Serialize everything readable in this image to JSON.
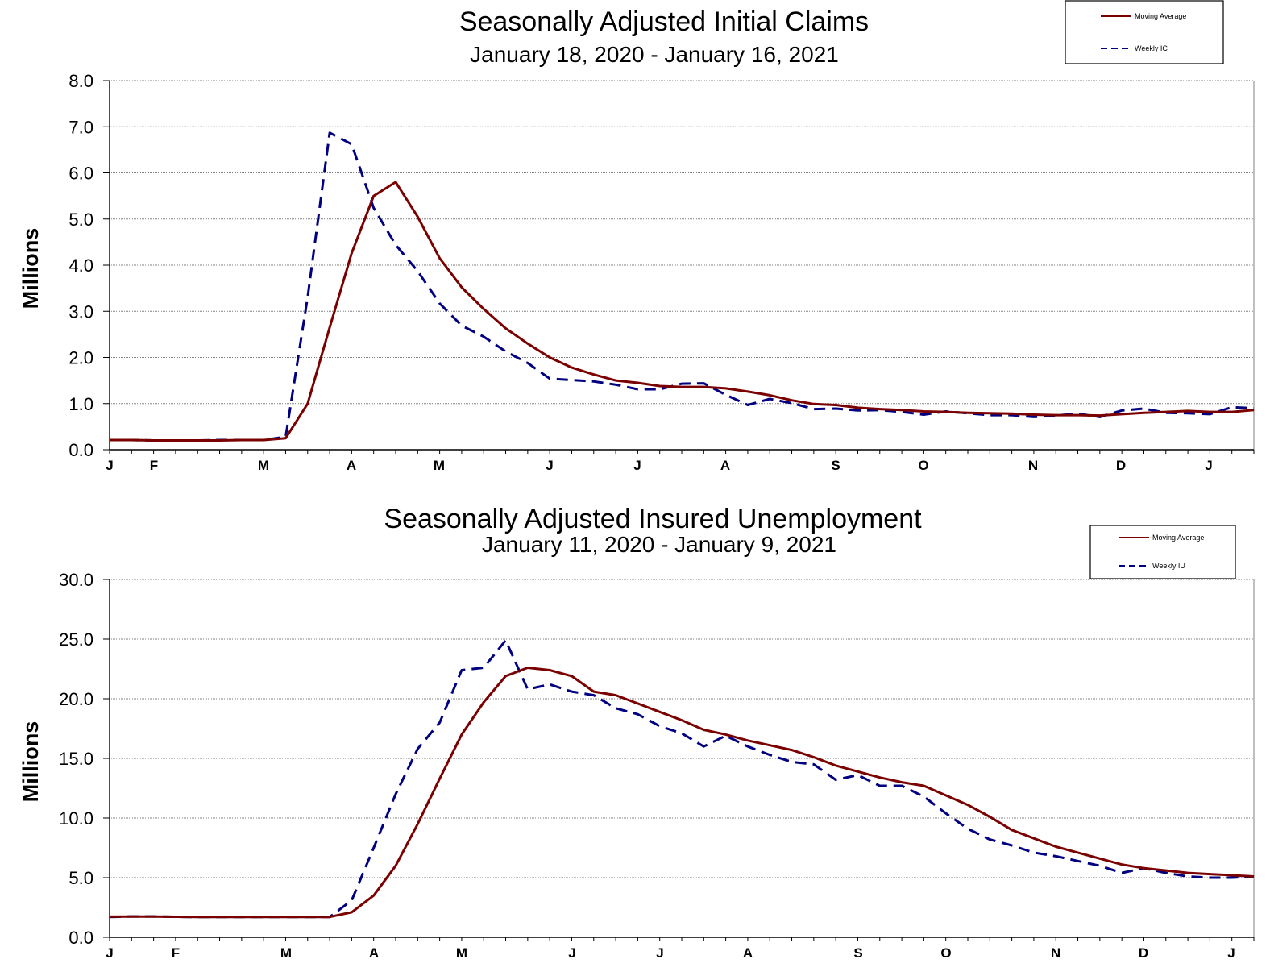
{
  "chart_data": [
    {
      "type": "line",
      "title": "Seasonally Adjusted Initial Claims",
      "subtitle": "January 18, 2020 - January 16, 2021",
      "ylabel": "Millions",
      "xlabel": "",
      "ylim": [
        0,
        8
      ],
      "y_ticks": [
        "0.0",
        "1.0",
        "2.0",
        "3.0",
        "4.0",
        "5.0",
        "6.0",
        "7.0",
        "8.0"
      ],
      "x_ticks": [
        "J",
        "F",
        "M",
        "A",
        "M",
        "J",
        "J",
        "A",
        "S",
        "O",
        "N",
        "D",
        "J"
      ],
      "grid": true,
      "legend": "top-right",
      "series": [
        {
          "name": "Moving Average",
          "color": "#7b0000",
          "style": "solid",
          "values": [
            0.21,
            0.21,
            0.2,
            0.2,
            0.2,
            0.2,
            0.21,
            0.21,
            0.25,
            1.0,
            2.65,
            4.26,
            5.5,
            5.8,
            5.05,
            4.15,
            3.52,
            3.05,
            2.63,
            2.3,
            2.0,
            1.78,
            1.63,
            1.5,
            1.45,
            1.38,
            1.36,
            1.36,
            1.33,
            1.26,
            1.18,
            1.07,
            0.99,
            0.97,
            0.91,
            0.88,
            0.86,
            0.83,
            0.82,
            0.8,
            0.79,
            0.78,
            0.76,
            0.75,
            0.75,
            0.74,
            0.77,
            0.8,
            0.82,
            0.84,
            0.82,
            0.82,
            0.86
          ]
        },
        {
          "name": "Weekly IC",
          "color": "#000080",
          "style": "dashed",
          "values": [
            0.21,
            0.21,
            0.2,
            0.2,
            0.2,
            0.21,
            0.21,
            0.21,
            0.28,
            3.31,
            6.87,
            6.62,
            5.24,
            4.44,
            3.87,
            3.17,
            2.69,
            2.45,
            2.13,
            1.88,
            1.54,
            1.51,
            1.48,
            1.41,
            1.31,
            1.31,
            1.43,
            1.44,
            1.19,
            0.97,
            1.1,
            1.01,
            0.88,
            0.89,
            0.85,
            0.86,
            0.82,
            0.76,
            0.83,
            0.79,
            0.75,
            0.75,
            0.71,
            0.74,
            0.78,
            0.71,
            0.85,
            0.89,
            0.8,
            0.79,
            0.77,
            0.92,
            0.9
          ]
        }
      ]
    },
    {
      "type": "line",
      "title": "Seasonally Adjusted Insured Unemployment",
      "subtitle": "January 11, 2020 - January 9, 2021",
      "ylabel": "Millions",
      "xlabel": "",
      "ylim": [
        0,
        30
      ],
      "y_ticks": [
        "0.0",
        "5.0",
        "10.0",
        "15.0",
        "20.0",
        "25.0",
        "30.0"
      ],
      "x_ticks": [
        "J",
        "F",
        "M",
        "A",
        "M",
        "J",
        "J",
        "A",
        "S",
        "O",
        "N",
        "D",
        "J"
      ],
      "grid": true,
      "legend": "top-right",
      "series": [
        {
          "name": "Moving Average",
          "color": "#7b0000",
          "style": "solid",
          "values": [
            1.73,
            1.74,
            1.74,
            1.72,
            1.71,
            1.7,
            1.7,
            1.7,
            1.7,
            1.7,
            1.71,
            2.1,
            3.5,
            6.0,
            9.5,
            13.3,
            17.0,
            19.7,
            21.9,
            22.6,
            22.4,
            21.9,
            20.6,
            20.3,
            19.6,
            18.9,
            18.2,
            17.4,
            17.0,
            16.5,
            16.1,
            15.7,
            15.1,
            14.4,
            13.9,
            13.4,
            13.0,
            12.7,
            11.9,
            11.1,
            10.1,
            9.0,
            8.3,
            7.6,
            7.1,
            6.6,
            6.1,
            5.8,
            5.6,
            5.4,
            5.3,
            5.2,
            5.1
          ]
        },
        {
          "name": "Weekly IU",
          "color": "#000080",
          "style": "dashed",
          "values": [
            1.7,
            1.75,
            1.75,
            1.72,
            1.7,
            1.7,
            1.7,
            1.7,
            1.7,
            1.7,
            1.7,
            3.1,
            7.5,
            12.0,
            15.8,
            18.0,
            22.4,
            22.6,
            24.9,
            20.8,
            21.2,
            20.6,
            20.3,
            19.2,
            18.7,
            17.7,
            17.1,
            16.0,
            16.9,
            16.0,
            15.3,
            14.7,
            14.5,
            13.2,
            13.6,
            12.7,
            12.7,
            11.8,
            10.4,
            9.1,
            8.2,
            7.7,
            7.1,
            6.8,
            6.4,
            6.0,
            5.4,
            5.8,
            5.4,
            5.1,
            5.0,
            5.0,
            5.1
          ]
        }
      ]
    }
  ]
}
